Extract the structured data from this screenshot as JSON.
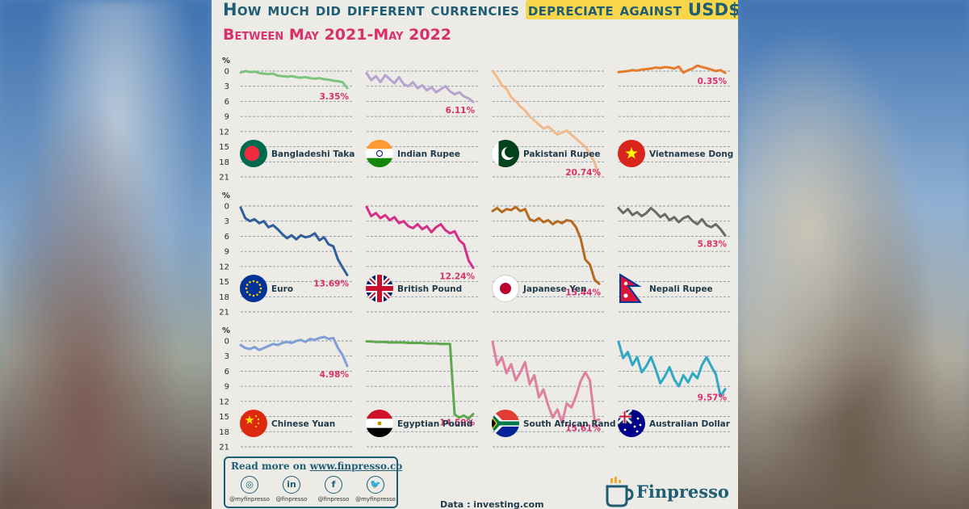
{
  "header": {
    "title_part1": "How much did different currencies ",
    "title_highlight": "depreciate against USD$",
    "subtitle": "Between May 2021-May 2022"
  },
  "colors": {
    "title": "#1f5d74",
    "accent": "#d9306b",
    "highlight": "#f7d64a",
    "grid": "#8a99a6"
  },
  "chart_data": [
    {
      "type": "line",
      "name": "Bangladeshi Taka",
      "percent_label": "3.35%",
      "color": "#7ec47e",
      "icon": "bangladesh-flag-icon",
      "ylabel": "%",
      "yticks": [
        0,
        3,
        6,
        9,
        12,
        15,
        18,
        21
      ],
      "ylim": [
        0,
        21
      ],
      "inverted": true,
      "values": [
        0.3,
        0,
        0.2,
        0.1,
        0.4,
        0.5,
        0.6,
        0.5,
        0.9,
        1.0,
        1.1,
        1.0,
        1.2,
        1.3,
        1.2,
        1.4,
        1.5,
        1.4,
        1.6,
        1.7,
        1.9,
        2.0,
        2.2,
        3.35
      ]
    },
    {
      "type": "line",
      "name": "Indian Rupee",
      "percent_label": "6.11%",
      "color": "#b8a2d0",
      "icon": "india-flag-icon",
      "ylabel": "%",
      "yticks": [
        0,
        3,
        6,
        9,
        12,
        15,
        18,
        21
      ],
      "ylim": [
        0,
        21
      ],
      "inverted": true,
      "values": [
        0.4,
        1.8,
        1.0,
        2.2,
        0.8,
        1.6,
        2.4,
        1.2,
        2.6,
        3.0,
        2.2,
        3.4,
        2.8,
        3.8,
        3.2,
        4.2,
        3.6,
        3.0,
        4.0,
        4.6,
        4.2,
        5.0,
        5.4,
        6.11
      ]
    },
    {
      "type": "line",
      "name": "Pakistani Rupee",
      "percent_label": "20.74%",
      "color": "#f2b98c",
      "icon": "pakistan-flag-icon",
      "ylabel": "%",
      "yticks": [
        0,
        3,
        6,
        9,
        12,
        15,
        18,
        21
      ],
      "ylim": [
        0,
        21
      ],
      "inverted": true,
      "values": [
        0,
        1.2,
        2.8,
        3.5,
        5.2,
        6.0,
        7.0,
        7.8,
        9.0,
        9.8,
        10.6,
        11.4,
        11.0,
        11.8,
        12.6,
        12.2,
        11.8,
        12.6,
        13.4,
        14.2,
        15.0,
        16.4,
        18.2,
        20.74
      ]
    },
    {
      "type": "line",
      "name": "Vietnamese Dong",
      "percent_label": "0.35%",
      "color": "#e57b2f",
      "icon": "vietnam-flag-icon",
      "ylabel": "%",
      "yticks": [
        0,
        3,
        6,
        9,
        12,
        15,
        18,
        21
      ],
      "ylim": [
        0,
        21
      ],
      "inverted": true,
      "values": [
        0.2,
        0.1,
        0.0,
        -0.2,
        -0.1,
        -0.3,
        -0.4,
        -0.5,
        -0.7,
        -0.6,
        -0.8,
        -0.7,
        -0.5,
        -0.9,
        0.3,
        -0.2,
        -0.5,
        -1.1,
        -0.8,
        -0.6,
        -0.3,
        0.0,
        -0.2,
        0.35
      ]
    },
    {
      "type": "line",
      "name": "Euro",
      "percent_label": "13.69%",
      "color": "#2f5f9a",
      "icon": "eu-flag-icon",
      "ylabel": "%",
      "yticks": [
        0,
        3,
        6,
        9,
        12,
        15,
        18,
        21
      ],
      "ylim": [
        0,
        21
      ],
      "inverted": true,
      "values": [
        0.3,
        2.4,
        3.0,
        2.6,
        3.4,
        3.0,
        4.2,
        3.8,
        4.6,
        5.6,
        6.4,
        5.8,
        6.6,
        5.8,
        6.2,
        6.0,
        5.4,
        6.8,
        6.2,
        7.6,
        8.0,
        10.6,
        12.2,
        13.69
      ]
    },
    {
      "type": "line",
      "name": "British Pound",
      "percent_label": "12.24%",
      "color": "#d62e88",
      "icon": "uk-flag-icon",
      "ylabel": "%",
      "yticks": [
        0,
        3,
        6,
        9,
        12,
        15,
        18,
        21
      ],
      "ylim": [
        0,
        21
      ],
      "inverted": true,
      "values": [
        0.2,
        2.0,
        1.4,
        2.4,
        1.8,
        2.8,
        2.2,
        3.4,
        3.0,
        4.0,
        4.4,
        3.6,
        4.6,
        4.0,
        5.2,
        4.2,
        3.6,
        4.8,
        5.4,
        5.0,
        6.8,
        7.6,
        10.8,
        12.24
      ]
    },
    {
      "type": "line",
      "name": "Japanese Yen",
      "percent_label": "15.44%",
      "color": "#b56a1e",
      "icon": "japan-flag-icon",
      "ylabel": "%",
      "yticks": [
        0,
        3,
        6,
        9,
        12,
        15,
        18,
        21
      ],
      "ylim": [
        0,
        21
      ],
      "inverted": true,
      "values": [
        1.0,
        0.4,
        1.2,
        0.6,
        0.8,
        0.2,
        1.0,
        0.6,
        2.6,
        3.0,
        2.4,
        3.2,
        2.8,
        3.6,
        3.0,
        3.4,
        2.8,
        3.0,
        4.2,
        6.4,
        10.6,
        11.6,
        14.6,
        15.44
      ]
    },
    {
      "type": "line",
      "name": "Nepali Rupee",
      "percent_label": "5.83%",
      "color": "#6a6a6a",
      "icon": "nepal-flag-icon",
      "ylabel": "%",
      "yticks": [
        0,
        3,
        6,
        9,
        12,
        15,
        18,
        21
      ],
      "ylim": [
        0,
        21
      ],
      "inverted": true,
      "values": [
        0.4,
        1.4,
        0.6,
        1.8,
        1.2,
        2.0,
        1.4,
        0.4,
        1.2,
        2.2,
        1.6,
        2.8,
        2.2,
        3.2,
        2.4,
        2.0,
        3.0,
        3.6,
        2.6,
        3.8,
        4.2,
        3.6,
        4.6,
        5.83
      ]
    },
    {
      "type": "line",
      "name": "Chinese Yuan",
      "percent_label": "4.98%",
      "color": "#7f9fd6",
      "icon": "china-flag-icon",
      "ylabel": "%",
      "yticks": [
        0,
        3,
        6,
        9,
        12,
        15,
        18,
        21
      ],
      "ylim": [
        0,
        21
      ],
      "inverted": true,
      "values": [
        0.8,
        1.4,
        1.6,
        1.2,
        1.8,
        1.4,
        1.0,
        0.6,
        0.8,
        0.4,
        0.2,
        0.4,
        0.0,
        -0.2,
        0.2,
        -0.4,
        -0.2,
        -0.6,
        -0.8,
        -0.4,
        -0.6,
        1.4,
        2.8,
        4.98
      ]
    },
    {
      "type": "line",
      "name": "Egyptian Pound",
      "percent_label": "14.50%",
      "color": "#5fa84e",
      "icon": "egypt-flag-icon",
      "ylabel": "%",
      "yticks": [
        0,
        3,
        6,
        9,
        12,
        15,
        18,
        21
      ],
      "ylim": [
        0,
        21
      ],
      "inverted": true,
      "values": [
        0.1,
        0.1,
        0.2,
        0.2,
        0.2,
        0.3,
        0.3,
        0.3,
        0.3,
        0.4,
        0.4,
        0.4,
        0.4,
        0.5,
        0.5,
        0.5,
        0.6,
        0.6,
        0.6,
        14.6,
        15.2,
        14.8,
        15.4,
        14.5
      ]
    },
    {
      "type": "line",
      "name": "South African Rand",
      "percent_label": "15.61%",
      "color": "#de7fa0",
      "icon": "south-africa-flag-icon",
      "ylabel": "%",
      "yticks": [
        0,
        3,
        6,
        9,
        12,
        15,
        18,
        21
      ],
      "ylim": [
        0,
        21
      ],
      "inverted": true,
      "values": [
        0.2,
        4.8,
        3.2,
        6.4,
        4.6,
        7.8,
        6.2,
        4.2,
        8.6,
        6.8,
        11.2,
        9.6,
        12.8,
        15.2,
        13.6,
        16.2,
        12.4,
        13.2,
        11.0,
        8.0,
        6.2,
        7.8,
        15.8,
        15.61
      ]
    },
    {
      "type": "line",
      "name": "Australian Dollar",
      "percent_label": "9.57%",
      "color": "#2fa8c4",
      "icon": "australia-flag-icon",
      "ylabel": "%",
      "yticks": [
        0,
        3,
        6,
        9,
        12,
        15,
        18,
        21
      ],
      "ylim": [
        0,
        21
      ],
      "inverted": true,
      "values": [
        0.2,
        3.4,
        2.2,
        4.8,
        3.2,
        6.2,
        5.0,
        3.2,
        5.6,
        8.4,
        7.0,
        5.2,
        7.6,
        9.0,
        6.8,
        8.2,
        6.4,
        7.4,
        4.8,
        3.2,
        5.0,
        6.6,
        11.0,
        9.57
      ]
    }
  ],
  "footer": {
    "read_more_prefix": "Read more on ",
    "read_more_url": "www.finpresso.co",
    "socials": [
      {
        "icon": "instagram-icon",
        "glyph": "◎",
        "handle": "@myfinpresso"
      },
      {
        "icon": "linkedin-icon",
        "glyph": "in",
        "handle": "@finpresso"
      },
      {
        "icon": "facebook-icon",
        "glyph": "f",
        "handle": "@finpresso"
      },
      {
        "icon": "twitter-icon",
        "glyph": "🐦",
        "handle": "@myfinpresso"
      }
    ],
    "data_source": "Data : investing.com",
    "brand_name": "Finpresso"
  }
}
